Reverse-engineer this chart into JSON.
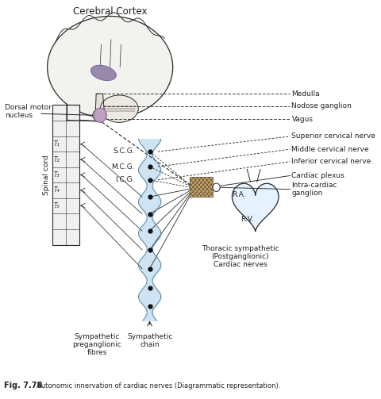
{
  "bg_color": "#ffffff",
  "figure_label": "Fig. 7.78",
  "figure_caption": "Autonomic innervation of cardiac nerves (Diagrammatic representation).",
  "labels": {
    "cerebral_cortex": "Cerebral Cortex",
    "dorsal_motor": "Dorsal motor\nnucleus",
    "spinal_cord": "Spinal cord",
    "medulla": "Medulla",
    "nodose_ganglion": "Nodose ganglion",
    "vagus": "Vagus",
    "superior_cervical": "Superior cervical nerve",
    "middle_cervical": "Middle cervical nerve",
    "inferior_cervical": "Inferior cervical nerve",
    "cardiac_plexus": "Cardiac plexus",
    "intra_cardiac": "Intra-cardiac\nganglion",
    "scg": "S.C.G.",
    "mcg": "M.C.G.",
    "icg": "I.C.G.",
    "ra": "R.A.",
    "rv": "R.V.",
    "thoracic_symp": "Thoracic sympathetic\n(Postganglionic)\nCardiac nerves",
    "symp_pre": "Sympathetic\npreganglionic\nfibres",
    "symp_chain": "Sympathetic\nchain",
    "t1": "T₁",
    "t2": "T₂",
    "t3": "T₃",
    "t4": "T₄",
    "t5": "T₅"
  },
  "colors": {
    "outline": "#2a2a2a",
    "spinal_cord_fill": "#f0f0f0",
    "symp_chain_fill": "#c8dff0",
    "heart_fill": "#ddeeff",
    "brain_fill": "#f2f2ee",
    "hippocampus_fill": "#9988aa",
    "ganglion_fill": "#c0a0c0",
    "cardiac_plexus_fill": "#c4a870",
    "text_color": "#222222"
  }
}
